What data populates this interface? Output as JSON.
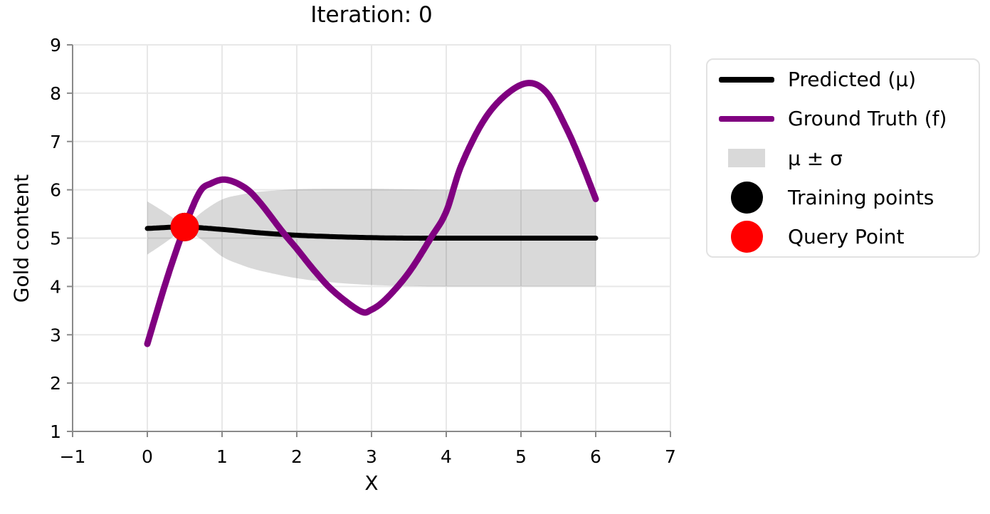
{
  "title": "Iteration: 0",
  "axes": {
    "xlabel": "X",
    "ylabel": "Gold content",
    "xlim": [
      -1,
      7
    ],
    "ylim": [
      1,
      9
    ],
    "xticks": [
      -1,
      0,
      1,
      2,
      3,
      4,
      5,
      6,
      7
    ],
    "yticks": [
      1,
      2,
      3,
      4,
      5,
      6,
      7,
      8,
      9
    ]
  },
  "legend": {
    "items": [
      {
        "label": "Predicted (μ)",
        "marker": "line",
        "color": "#000000"
      },
      {
        "label": "Ground Truth (f)",
        "marker": "line",
        "color": "#800080"
      },
      {
        "label": "μ ± σ",
        "marker": "patch",
        "color": "#d9d9d9"
      },
      {
        "label": "Training points",
        "marker": "circle",
        "color": "#000000"
      },
      {
        "label": "Query Point",
        "marker": "circle",
        "color": "#ff0000"
      }
    ]
  },
  "colors": {
    "predicted": "#000000",
    "ground_truth": "#800080",
    "band": "#d9d9d9",
    "query_point": "#ff0000",
    "training_point": "#000000",
    "grid": "#e8e8e8",
    "spine": "#8a8a8a"
  },
  "chart_data": {
    "type": "line",
    "title": "Iteration: 0",
    "xlabel": "X",
    "ylabel": "Gold content",
    "xlim": [
      -1,
      7
    ],
    "ylim": [
      1,
      9
    ],
    "grid": true,
    "legend_position": "outside upper right",
    "series": [
      {
        "name": "Predicted (μ)",
        "color": "#000000",
        "x": [
          0,
          0.5,
          1.0,
          1.5,
          2.0,
          2.5,
          3.0,
          3.5,
          4.0,
          4.5,
          5.0,
          5.5,
          6.0
        ],
        "y": [
          5.2,
          5.23,
          5.18,
          5.11,
          5.06,
          5.03,
          5.01,
          5.0,
          5.0,
          5.0,
          5.0,
          5.0,
          5.0
        ]
      },
      {
        "name": "Ground Truth (f)",
        "color": "#800080",
        "x": [
          0,
          0.25,
          0.5,
          0.7,
          0.85,
          1.05,
          1.3,
          1.5,
          1.8,
          2.0,
          2.25,
          2.5,
          2.85,
          3.0,
          3.2,
          3.5,
          3.8,
          4.0,
          4.2,
          4.5,
          4.8,
          5.1,
          5.35,
          5.6,
          5.8,
          6.0
        ],
        "y": [
          2.81,
          4.1,
          5.23,
          5.95,
          6.13,
          6.21,
          6.05,
          5.75,
          5.15,
          4.78,
          4.3,
          3.89,
          3.49,
          3.52,
          3.75,
          4.29,
          5.02,
          5.55,
          6.5,
          7.43,
          7.97,
          8.21,
          8.0,
          7.3,
          6.6,
          5.81
        ]
      },
      {
        "name": "μ ± σ",
        "color": "#d9d9d9",
        "x": [
          0,
          0.25,
          0.45,
          0.5,
          0.55,
          0.75,
          1.0,
          1.25,
          1.5,
          2.0,
          2.5,
          3.0,
          3.5,
          4.0,
          5.0,
          6.0
        ],
        "y_high": [
          5.76,
          5.52,
          5.3,
          5.26,
          5.3,
          5.56,
          5.8,
          5.9,
          5.96,
          6.01,
          6.02,
          6.02,
          6.01,
          6.0,
          6.0,
          6.0
        ],
        "y_low": [
          4.66,
          4.92,
          5.15,
          5.2,
          5.15,
          4.94,
          4.62,
          4.45,
          4.33,
          4.17,
          4.08,
          4.03,
          4.01,
          4.0,
          4.0,
          4.0
        ]
      }
    ],
    "training_points": [
      {
        "x": 0.5,
        "y": 5.23
      }
    ],
    "query_point": {
      "x": 0.5,
      "y": 5.23
    }
  }
}
